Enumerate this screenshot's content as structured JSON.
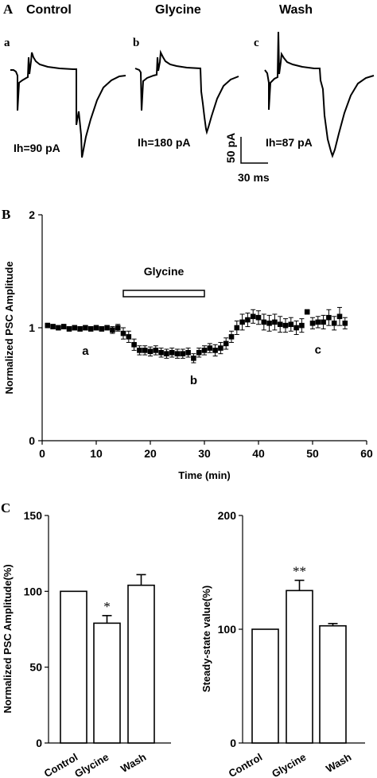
{
  "panels": {
    "A": {
      "letter": "A",
      "conditions": [
        {
          "title": "Control",
          "sub": "a",
          "ih_label": "Ih=90 pA",
          "ih_value": 90
        },
        {
          "title": "Glycine",
          "sub": "b",
          "ih_label": "Ih=180 pA",
          "ih_value": 180
        },
        {
          "title": "Wash",
          "sub": "c",
          "ih_label": "Ih=87 pA",
          "ih_value": 87
        }
      ],
      "scale_bar": {
        "amplitude": "50 pA",
        "time": "30 ms"
      }
    },
    "B": {
      "letter": "B"
    },
    "C": {
      "letter": "C"
    }
  },
  "chart_data": [
    {
      "type": "line",
      "panel": "B",
      "title": "",
      "xlabel": "Time (min)",
      "ylabel": "Normalized PSC Amplitude",
      "xlim": [
        0,
        60
      ],
      "ylim": [
        0,
        2
      ],
      "xticks": [
        0,
        10,
        20,
        30,
        40,
        50,
        60
      ],
      "yticks": [
        0,
        1,
        2
      ],
      "annotation": {
        "label": "Glycine",
        "from": 15,
        "to": 30
      },
      "point_labels": [
        {
          "text": "a",
          "x": 8,
          "y": 0.76
        },
        {
          "text": "b",
          "x": 28,
          "y": 0.5
        },
        {
          "text": "c",
          "x": 51,
          "y": 0.77
        }
      ],
      "series": [
        {
          "x": [
            1,
            2,
            3,
            4,
            5,
            6,
            7,
            8,
            9,
            10,
            11,
            12,
            13,
            14,
            15,
            16,
            17,
            18,
            19,
            20,
            21,
            22,
            23,
            24,
            25,
            26,
            27,
            28,
            29,
            30,
            31,
            32,
            33,
            34,
            35,
            36,
            37,
            38,
            39,
            40,
            41,
            42,
            43,
            44,
            45,
            46,
            47,
            48,
            49,
            50,
            51,
            52,
            53,
            54,
            55,
            56
          ],
          "y": [
            1.02,
            1.01,
            1.0,
            1.01,
            0.99,
            1.0,
            0.99,
            1.0,
            0.99,
            1.0,
            0.99,
            1.0,
            0.98,
            1.0,
            0.95,
            0.92,
            0.85,
            0.8,
            0.8,
            0.79,
            0.8,
            0.78,
            0.77,
            0.78,
            0.77,
            0.77,
            0.78,
            0.73,
            0.78,
            0.8,
            0.82,
            0.8,
            0.82,
            0.86,
            0.92,
            1.0,
            1.05,
            1.07,
            1.1,
            1.09,
            1.05,
            1.04,
            1.05,
            1.03,
            1.02,
            1.03,
            1.0,
            1.02,
            1.14,
            1.04,
            1.05,
            1.05,
            1.09,
            1.04,
            1.1,
            1.04
          ],
          "err": [
            0.02,
            0.02,
            0.02,
            0.02,
            0.02,
            0.02,
            0.02,
            0.02,
            0.02,
            0.02,
            0.02,
            0.02,
            0.03,
            0.03,
            0.05,
            0.05,
            0.05,
            0.04,
            0.04,
            0.04,
            0.04,
            0.04,
            0.04,
            0.04,
            0.04,
            0.04,
            0.04,
            0.04,
            0.04,
            0.04,
            0.04,
            0.05,
            0.05,
            0.05,
            0.05,
            0.06,
            0.07,
            0.06,
            0.06,
            0.06,
            0.07,
            0.07,
            0.07,
            0.07,
            0.06,
            0.06,
            0.06,
            0.06,
            0.02,
            0.05,
            0.05,
            0.06,
            0.07,
            0.06,
            0.08,
            0.05
          ]
        }
      ]
    },
    {
      "type": "bar",
      "panel": "C-left",
      "categories": [
        "Control",
        "Glycine",
        "Wash"
      ],
      "values": [
        100,
        79,
        104
      ],
      "errors": [
        0,
        5,
        7
      ],
      "significance": [
        "",
        "*",
        ""
      ],
      "title": "",
      "xlabel": "",
      "ylabel": "Normalized PSC Amplitude(%)",
      "ylim": [
        0,
        150
      ],
      "yticks": [
        0,
        50,
        100,
        150
      ]
    },
    {
      "type": "bar",
      "panel": "C-right",
      "categories": [
        "Control",
        "Glycine",
        "Wash"
      ],
      "values": [
        100,
        134,
        103
      ],
      "errors": [
        0,
        9,
        2
      ],
      "significance": [
        "",
        "**",
        ""
      ],
      "title": "",
      "xlabel": "",
      "ylabel": "Steady-state value(%)",
      "ylim": [
        0,
        200
      ],
      "yticks": [
        0,
        100,
        200
      ]
    }
  ]
}
